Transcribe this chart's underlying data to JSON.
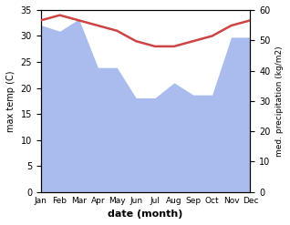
{
  "months": [
    "Jan",
    "Feb",
    "Mar",
    "Apr",
    "May",
    "Jun",
    "Jul",
    "Aug",
    "Sep",
    "Oct",
    "Nov",
    "Dec"
  ],
  "month_x": [
    0,
    1,
    2,
    3,
    4,
    5,
    6,
    7,
    8,
    9,
    10,
    11
  ],
  "temperature": [
    33,
    34,
    33,
    32,
    31,
    29,
    28,
    28,
    29,
    30,
    32,
    33
  ],
  "precipitation": [
    55,
    53,
    57,
    41,
    41,
    31,
    31,
    36,
    32,
    32,
    51,
    51
  ],
  "temp_color": "#cc4444",
  "precip_color": "#aabbee",
  "left_ylim": [
    0,
    35
  ],
  "right_ylim": [
    0,
    60
  ],
  "left_yticks": [
    0,
    5,
    10,
    15,
    20,
    25,
    30,
    35
  ],
  "right_yticks": [
    0,
    10,
    20,
    30,
    40,
    50,
    60
  ],
  "ylabel_left": "max temp (C)",
  "ylabel_right": "med. precipitation (kg/m2)",
  "xlabel": "date (month)",
  "background_color": "#ffffff"
}
